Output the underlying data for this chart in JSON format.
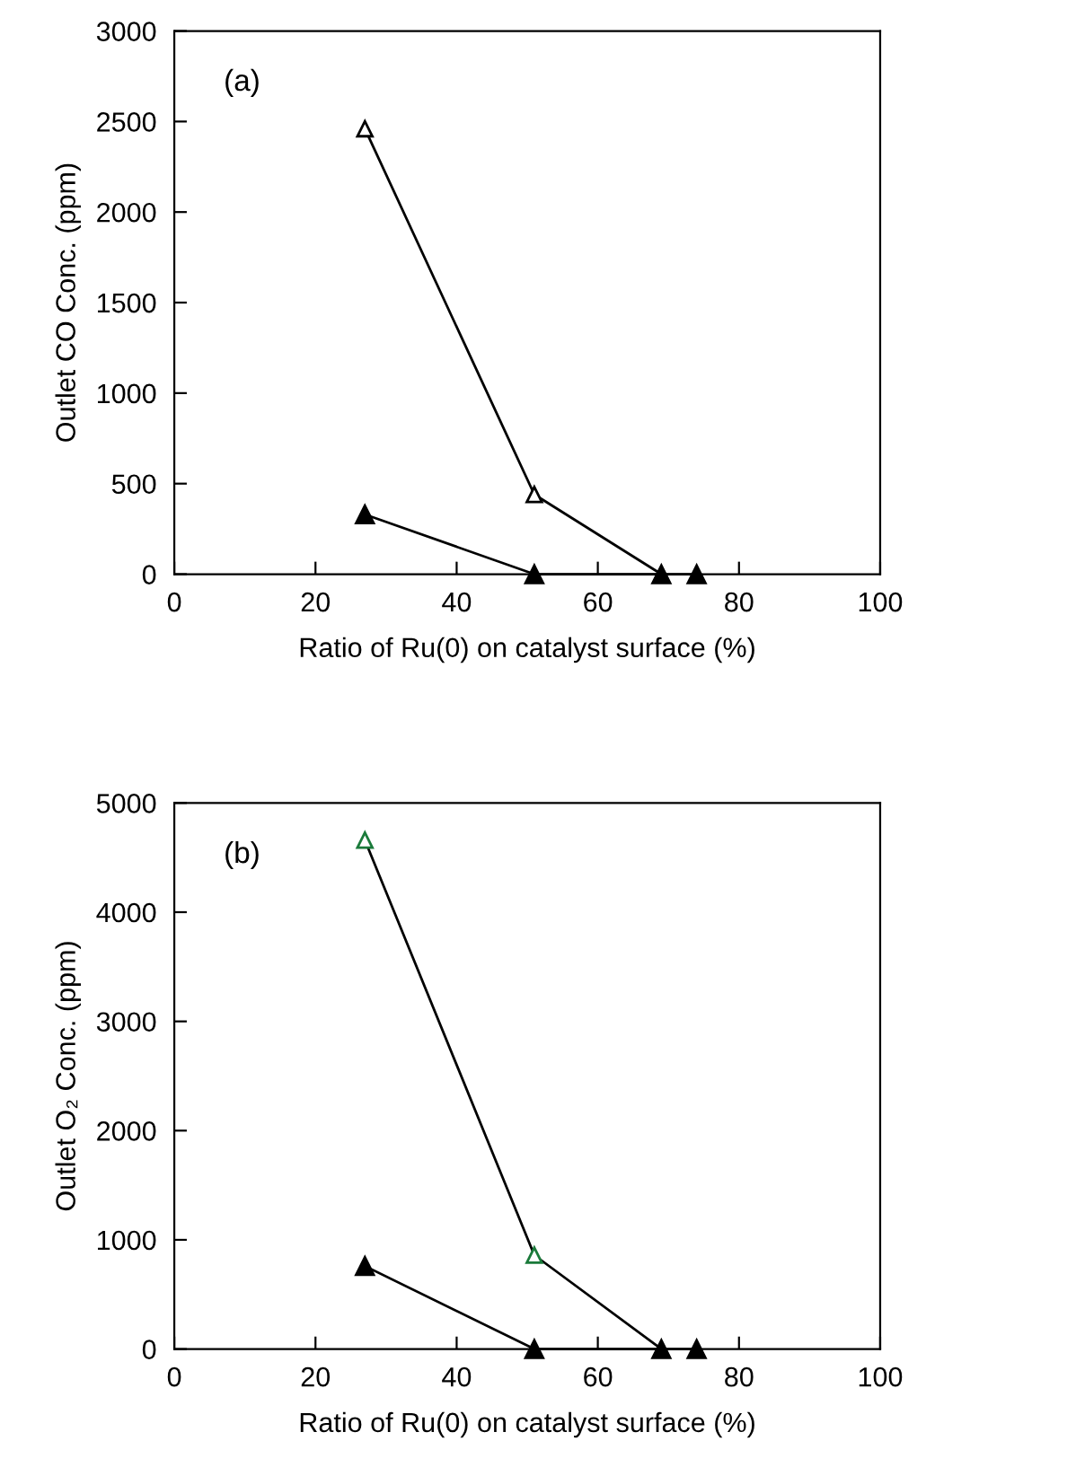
{
  "chart_data": [
    {
      "type": "line",
      "xlabel": "Ratio of Ru(0) on catalyst surface (%)",
      "ylabel": "Outlet CO Conc. (ppm)",
      "annotations": [
        "(a)"
      ],
      "xlim": [
        0,
        100
      ],
      "xticks": [
        0,
        20,
        40,
        60,
        80,
        100
      ],
      "ylim": [
        0,
        3000
      ],
      "yticks": [
        0,
        500,
        1000,
        1500,
        2000,
        2500,
        3000
      ],
      "grid": false,
      "marker": "triangle",
      "line_style": "solid",
      "series": [
        {
          "color": "#000000",
          "x": [
            27,
            51,
            69
          ],
          "values": [
            2460,
            440,
            0
          ]
        },
        {
          "color": "#000000",
          "x": [
            27,
            51,
            69,
            74
          ],
          "values": [
            330,
            0,
            0,
            0
          ]
        }
      ]
    },
    {
      "type": "line",
      "xlabel": "Ratio of Ru(0) on catalyst surface (%)",
      "ylabel": "Outlet O₂ Conc. (ppm)",
      "annotations": [
        "(b)"
      ],
      "xlim": [
        0,
        100
      ],
      "xticks": [
        0,
        20,
        40,
        60,
        80,
        100
      ],
      "ylim": [
        0,
        5000
      ],
      "yticks": [
        0,
        1000,
        2000,
        3000,
        4000,
        5000
      ],
      "grid": false,
      "marker": "triangle",
      "line_style": "solid",
      "series": [
        {
          "color": "#1a7a3a",
          "x": [
            27,
            51,
            69
          ],
          "values": [
            4660,
            860,
            0
          ]
        },
        {
          "color": "#000000",
          "x": [
            27,
            51,
            69,
            74
          ],
          "values": [
            760,
            0,
            0,
            0
          ]
        }
      ]
    }
  ]
}
